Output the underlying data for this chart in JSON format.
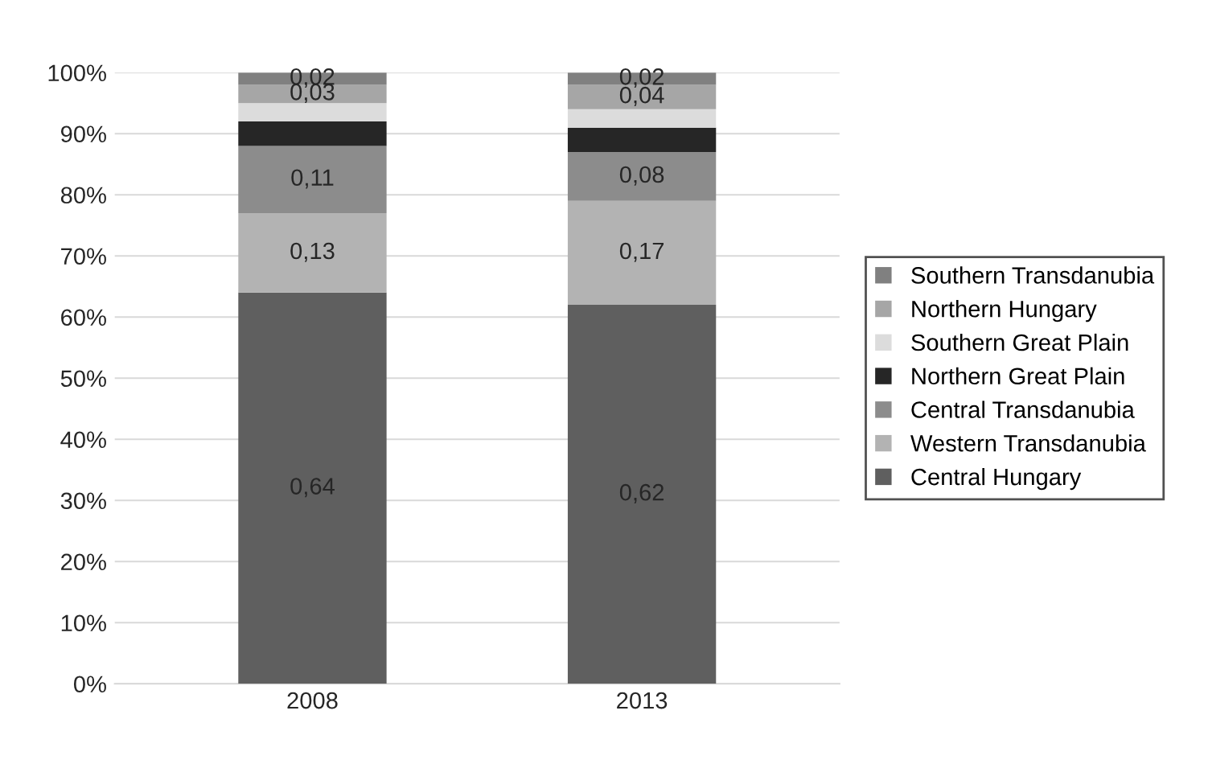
{
  "chart_data": {
    "type": "bar",
    "stacked": true,
    "categories": [
      "2008",
      "2013"
    ],
    "series": [
      {
        "name": "Central Hungary",
        "color": "#5f5f5f",
        "values": [
          0.64,
          0.62
        ],
        "value_labels": [
          "0,64",
          "0,62"
        ]
      },
      {
        "name": "Western Transdanubia",
        "color": "#b3b3b3",
        "values": [
          0.13,
          0.17
        ],
        "value_labels": [
          "0,13",
          "0,17"
        ]
      },
      {
        "name": "Central Transdanubia",
        "color": "#8c8c8c",
        "values": [
          0.11,
          0.08
        ],
        "value_labels": [
          "0,11",
          "0,08"
        ]
      },
      {
        "name": "Northern Great Plain",
        "color": "#262626",
        "values": [
          0.04,
          0.04
        ],
        "value_labels": [
          null,
          null
        ]
      },
      {
        "name": "Southern Great Plain",
        "color": "#dcdcdc",
        "values": [
          0.03,
          0.03
        ],
        "value_labels": [
          null,
          null
        ]
      },
      {
        "name": "Northern Hungary",
        "color": "#a6a6a6",
        "values": [
          0.03,
          0.04
        ],
        "value_labels": [
          "0,03",
          "0,04"
        ]
      },
      {
        "name": "Southern Transdanubia",
        "color": "#808080",
        "values": [
          0.02,
          0.02
        ],
        "value_labels": [
          "0,02",
          "0,02"
        ]
      }
    ],
    "ylim": [
      0,
      1
    ],
    "yticks": [
      {
        "value": 0,
        "label": "0%"
      },
      {
        "value": 0.1,
        "label": "10%"
      },
      {
        "value": 0.2,
        "label": "20%"
      },
      {
        "value": 0.3,
        "label": "30%"
      },
      {
        "value": 0.4,
        "label": "40%"
      },
      {
        "value": 0.5,
        "label": "50%"
      },
      {
        "value": 0.6,
        "label": "60%"
      },
      {
        "value": 0.7,
        "label": "70%"
      },
      {
        "value": 0.8,
        "label": "80%"
      },
      {
        "value": 0.9,
        "label": "90%"
      },
      {
        "value": 1,
        "label": "100%"
      }
    ],
    "grid": "y",
    "legend": "right"
  }
}
